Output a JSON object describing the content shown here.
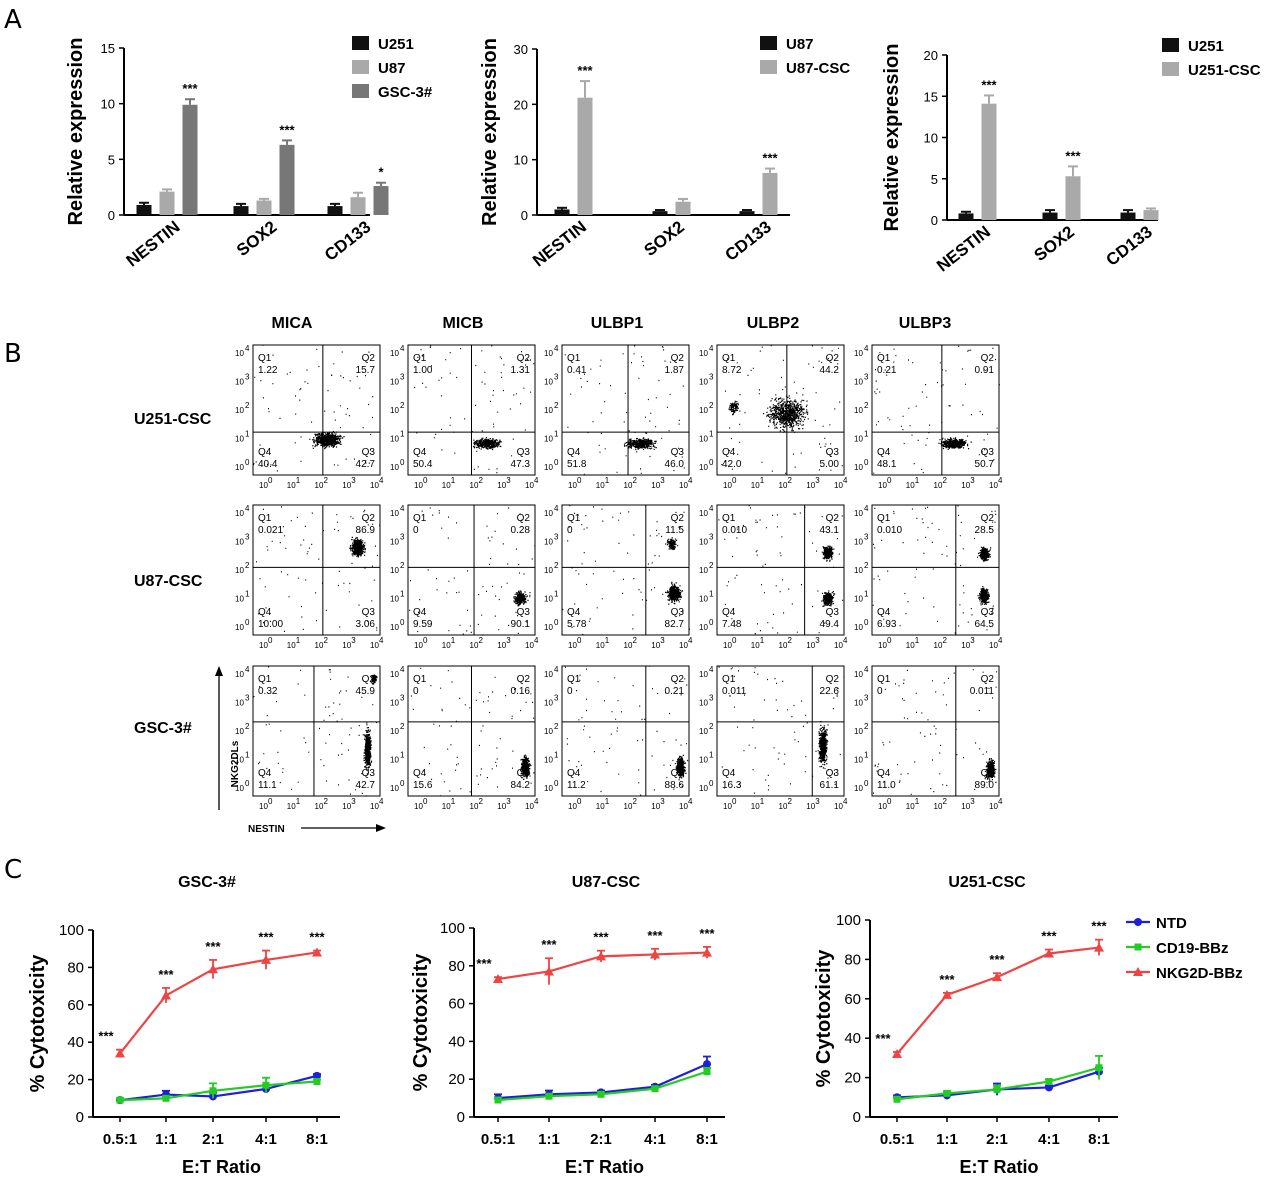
{
  "panels": {
    "A": "A",
    "B": "B",
    "C": "C"
  },
  "panel_a": {
    "ylabel": "Relative expression",
    "categories": [
      "NESTIN",
      "SOX2",
      "CD133"
    ]
  },
  "panel_b": {
    "columns": [
      "MICA",
      "MICB",
      "ULBP1",
      "ULBP2",
      "ULBP3"
    ],
    "rows": [
      "U251-CSC",
      "U87-CSC",
      "GSC-3#"
    ],
    "quadrant_names": [
      "Q1",
      "Q2",
      "Q3",
      "Q4"
    ],
    "xlabel": "NESTIN",
    "ylabel": "NKG2DLs",
    "log_ticks": [
      "0",
      "1",
      "2",
      "3",
      "4"
    ],
    "log_base": "10",
    "quadrant_values": [
      [
        [
          "1.22",
          "15.7",
          "42.7",
          "40.4"
        ],
        [
          "1.00",
          "1.31",
          "47.3",
          "50.4"
        ],
        [
          "0.41",
          "1.87",
          "46.0",
          "51.8"
        ],
        [
          "8.72",
          "44.2",
          "5.00",
          "42.0"
        ],
        [
          "0.21",
          "0.91",
          "50.7",
          "48.1"
        ]
      ],
      [
        [
          "0.021",
          "86.9",
          "3.06",
          "10.00"
        ],
        [
          "0",
          "0.28",
          "90.1",
          "9.59"
        ],
        [
          "0",
          "11.5",
          "82.7",
          "5.78"
        ],
        [
          "0.010",
          "43.1",
          "49.4",
          "7.48"
        ],
        [
          "0.010",
          "28.5",
          "64.5",
          "6.93"
        ]
      ],
      [
        [
          "0.32",
          "45.9",
          "42.7",
          "11.1"
        ],
        [
          "0",
          "0.16",
          "84.2",
          "15.6"
        ],
        [
          "0",
          "0.21",
          "88.6",
          "11.2"
        ],
        [
          "0.011",
          "22.6",
          "61.1",
          "16.3"
        ],
        [
          "0",
          "0.011",
          "89.0",
          "11.0"
        ]
      ]
    ]
  },
  "panel_c": {
    "xlabel": "E:T Ratio",
    "ylabel": "% Cytotoxicity",
    "legend": [
      "NTD",
      "CD19-BBz",
      "NKG2D-BBz"
    ]
  },
  "colors": {
    "bar_black": "#111111",
    "bar_light": "#a9a9a9",
    "bar_dark": "#777777",
    "ntd": "#1f1fd8",
    "cd19": "#22cc22",
    "nkg2d": "#ee4444"
  },
  "chart_data": [
    {
      "type": "bar",
      "categories": [
        "NESTIN",
        "SOX2",
        "CD133"
      ],
      "ylabel": "Relative expression",
      "ylim": [
        0,
        15
      ],
      "yticks": [
        0,
        5,
        10,
        15
      ],
      "legend_position": "top-right",
      "series": [
        {
          "name": "U251",
          "values": [
            0.9,
            0.8,
            0.8
          ],
          "errors": [
            0.2,
            0.2,
            0.2
          ]
        },
        {
          "name": "U87",
          "values": [
            2.1,
            1.3,
            1.6
          ],
          "errors": [
            0.2,
            0.15,
            0.4
          ]
        },
        {
          "name": "GSC-3#",
          "values": [
            9.9,
            6.3,
            2.6
          ],
          "errors": [
            0.5,
            0.4,
            0.3
          ]
        }
      ],
      "significance": [
        "***",
        "***",
        "*"
      ]
    },
    {
      "type": "bar",
      "categories": [
        "NESTIN",
        "SOX2",
        "CD133"
      ],
      "ylabel": "Relative expression",
      "ylim": [
        0,
        30
      ],
      "yticks": [
        0,
        10,
        20,
        30
      ],
      "legend_position": "top-right",
      "series": [
        {
          "name": "U87",
          "values": [
            1.0,
            0.7,
            0.7
          ],
          "errors": [
            0.3,
            0.2,
            0.2
          ]
        },
        {
          "name": "U87-CSC",
          "values": [
            21.2,
            2.4,
            7.6
          ],
          "errors": [
            3.0,
            0.5,
            0.8
          ]
        }
      ],
      "significance": [
        "***",
        "",
        "***"
      ]
    },
    {
      "type": "bar",
      "categories": [
        "NESTIN",
        "SOX2",
        "CD133"
      ],
      "ylabel": "Relative expression",
      "ylim": [
        0,
        20
      ],
      "yticks": [
        0,
        5,
        10,
        15,
        20
      ],
      "legend_position": "top-right",
      "series": [
        {
          "name": "U251",
          "values": [
            0.8,
            0.9,
            0.9
          ],
          "errors": [
            0.2,
            0.3,
            0.3
          ]
        },
        {
          "name": "U251-CSC",
          "values": [
            14.1,
            5.3,
            1.2
          ],
          "errors": [
            1.0,
            1.2,
            0.2
          ]
        }
      ],
      "significance": [
        "***",
        "***",
        ""
      ]
    },
    {
      "type": "line",
      "title": "GSC-3#",
      "categories": [
        "0.5:1",
        "1:1",
        "2:1",
        "4:1",
        "8:1"
      ],
      "xlabel": "E:T Ratio",
      "ylabel": "% Cytotoxicity",
      "ylim": [
        0,
        100
      ],
      "yticks": [
        0,
        20,
        40,
        60,
        80,
        100
      ],
      "series": [
        {
          "name": "NTD",
          "values": [
            9,
            12,
            11,
            15,
            22
          ],
          "errors": [
            1,
            2,
            2,
            2,
            1
          ]
        },
        {
          "name": "CD19-BBz",
          "values": [
            9,
            10,
            14,
            17,
            19
          ],
          "errors": [
            1,
            1,
            4,
            4,
            1
          ]
        },
        {
          "name": "NKG2D-BBz",
          "values": [
            34,
            65,
            79,
            84,
            88
          ],
          "errors": [
            2,
            4,
            5,
            5,
            1
          ]
        }
      ],
      "significance": [
        "***",
        "***",
        "***",
        "***",
        "***"
      ]
    },
    {
      "type": "line",
      "title": "U87-CSC",
      "categories": [
        "0.5:1",
        "1:1",
        "2:1",
        "4:1",
        "8:1"
      ],
      "xlabel": "E:T Ratio",
      "ylabel": "% Cytotoxicity",
      "ylim": [
        0,
        100
      ],
      "yticks": [
        0,
        20,
        40,
        60,
        80,
        100
      ],
      "series": [
        {
          "name": "NTD",
          "values": [
            10,
            12,
            13,
            16,
            28
          ],
          "errors": [
            2,
            2,
            1,
            1,
            4
          ]
        },
        {
          "name": "CD19-BBz",
          "values": [
            9,
            11,
            12,
            15,
            24
          ],
          "errors": [
            1,
            1,
            1,
            1,
            2
          ]
        },
        {
          "name": "NKG2D-BBz",
          "values": [
            73,
            77,
            85,
            86,
            87
          ],
          "errors": [
            1,
            7,
            3,
            3,
            3
          ]
        }
      ],
      "significance": [
        "***",
        "***",
        "***",
        "***",
        "***"
      ]
    },
    {
      "type": "line",
      "title": "U251-CSC",
      "categories": [
        "0.5:1",
        "1:1",
        "2:1",
        "4:1",
        "8:1"
      ],
      "xlabel": "E:T Ratio",
      "ylabel": "% Cytotoxicity",
      "ylim": [
        0,
        100
      ],
      "yticks": [
        0,
        20,
        40,
        60,
        80,
        100
      ],
      "legend_position": "right",
      "series": [
        {
          "name": "NTD",
          "values": [
            10,
            11,
            14,
            15,
            23
          ],
          "errors": [
            1,
            2,
            3,
            1,
            2
          ]
        },
        {
          "name": "CD19-BBz",
          "values": [
            9,
            12,
            14,
            18,
            25
          ],
          "errors": [
            1,
            1,
            2,
            1,
            6
          ]
        },
        {
          "name": "NKG2D-BBz",
          "values": [
            32,
            62,
            71,
            83,
            86
          ],
          "errors": [
            1,
            1,
            2,
            2,
            4
          ]
        }
      ],
      "significance": [
        "***",
        "***",
        "***",
        "***",
        "***"
      ]
    }
  ]
}
